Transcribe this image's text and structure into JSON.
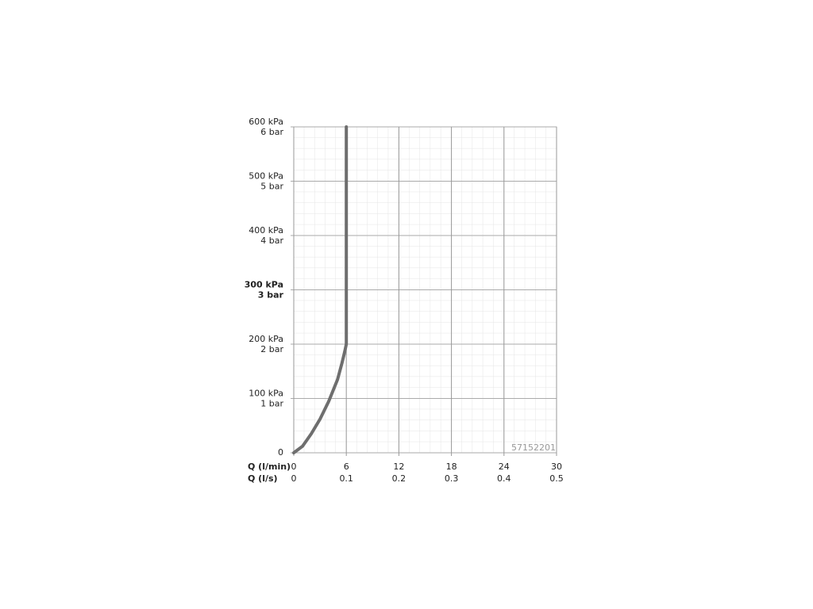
{
  "chart_data": {
    "type": "line",
    "x": [
      0,
      1,
      2,
      3,
      4,
      5,
      5.5,
      5.8,
      6,
      6,
      6
    ],
    "values": [
      0,
      12,
      35,
      62,
      95,
      135,
      165,
      185,
      200,
      400,
      600
    ],
    "color": "#6e6e6e",
    "xlabel": "Q (l/min)",
    "x2label": "Q (l/s)",
    "xlim": [
      0,
      30
    ],
    "xticks": [
      0,
      6,
      12,
      18,
      24,
      30
    ],
    "x2lim": [
      0,
      0.5
    ],
    "x2ticks": [
      0,
      0.1,
      0.2,
      0.3,
      0.4,
      0.5
    ],
    "ylim": [
      0,
      600
    ],
    "yticks": [
      0,
      {
        "value": 100,
        "label": "100 kPa"
      },
      {
        "value": 200,
        "label": "200 kPa"
      },
      {
        "value": 300,
        "label": "300 kPa"
      },
      {
        "value": 400,
        "label": "400 kPa"
      },
      {
        "value": 500,
        "label": "500 kPa"
      },
      {
        "value": 600,
        "label": "600 kPa"
      }
    ],
    "y2lim": [
      0,
      6
    ],
    "y2ticks": [
      {
        "value": 1,
        "label": "1 bar"
      },
      {
        "value": 2,
        "label": "2 bar"
      },
      {
        "value": 3,
        "label": "3 bar"
      },
      {
        "value": 4,
        "label": "4 bar"
      },
      {
        "value": 5,
        "label": "5 bar"
      },
      {
        "value": 6,
        "label": "6 bar"
      }
    ],
    "highlight_ytick": 300,
    "grid": true,
    "annotation": "57152201"
  }
}
